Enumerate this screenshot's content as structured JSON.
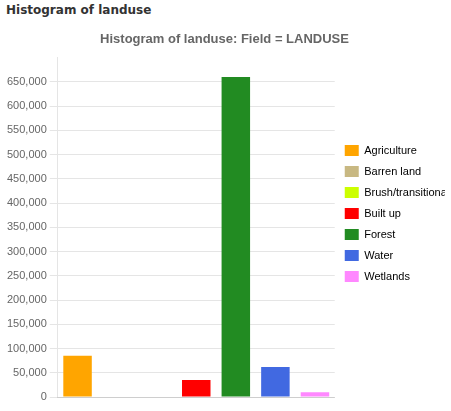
{
  "chart_data": {
    "type": "bar",
    "title": "Histogram of landuse: Field = LANDUSE",
    "annotations": [
      "Histogram of landuse"
    ],
    "categories": [
      "Agriculture",
      "Barren land",
      "Brush/transitional",
      "Built up",
      "Forest",
      "Water",
      "Wetlands"
    ],
    "values": [
      85000,
      0,
      0,
      35000,
      660000,
      62000,
      10000
    ],
    "colors": [
      "#FFA500",
      "#C8B882",
      "#CCFF00",
      "#FF0000",
      "#228B22",
      "#4169E1",
      "#FF88FF"
    ],
    "ylim": [
      0,
      700000
    ],
    "yticks": [
      0,
      {
        "value": 50000,
        "label": "50,000"
      },
      {
        "value": 100000,
        "label": "100,000"
      },
      {
        "value": 150000,
        "label": "150,000"
      },
      {
        "value": 200000,
        "label": "200,000"
      },
      {
        "value": 250000,
        "label": "250,000"
      },
      {
        "value": 300000,
        "label": "300,000"
      },
      {
        "value": 350000,
        "label": "350,000"
      },
      {
        "value": 400000,
        "label": "400,000"
      },
      {
        "value": 450000,
        "label": "450,000"
      },
      {
        "value": 500000,
        "label": "500,000"
      },
      {
        "value": 550000,
        "label": "550,000"
      },
      {
        "value": 600000,
        "label": "600,000"
      },
      {
        "value": 650000,
        "label": "650,000"
      }
    ],
    "grid": true,
    "legend": "right",
    "tick_labels": "y"
  }
}
